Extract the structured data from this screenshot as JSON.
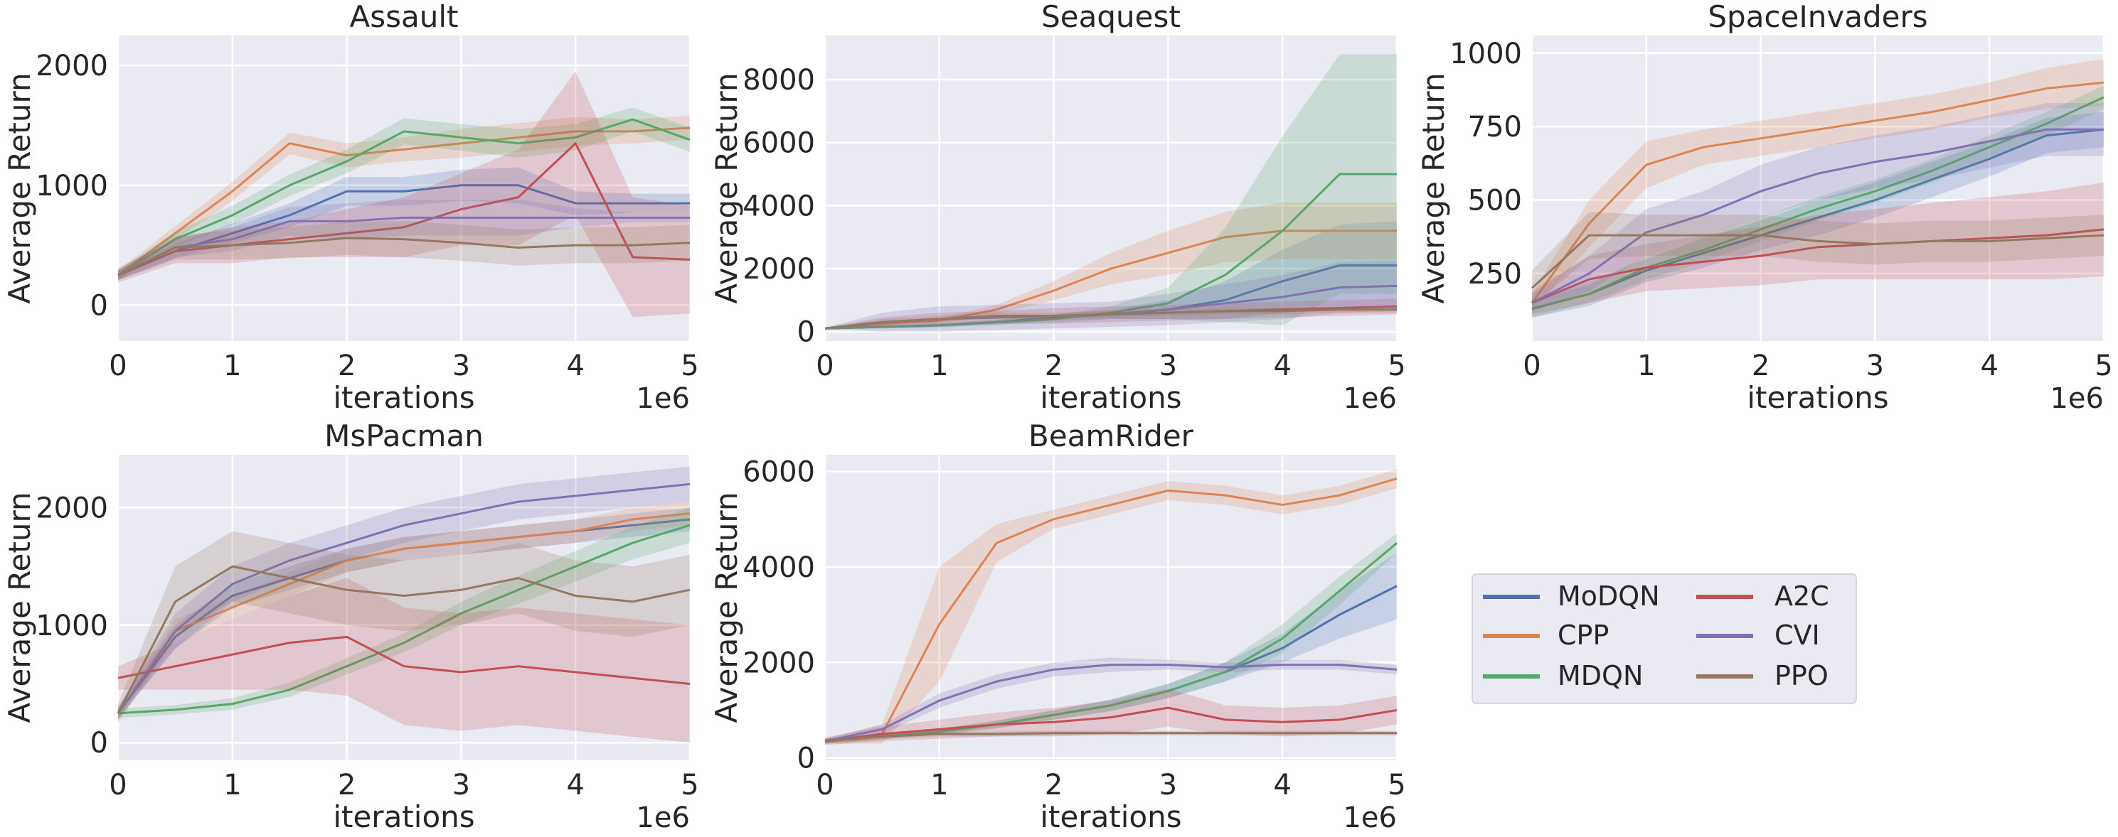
{
  "figure": {
    "legend": {
      "entries": [
        {
          "label": "MoDQN",
          "color": "#4c72b0"
        },
        {
          "label": "CPP",
          "color": "#dd8452"
        },
        {
          "label": "MDQN",
          "color": "#55a868"
        },
        {
          "label": "A2C",
          "color": "#c44e52"
        },
        {
          "label": "CVI",
          "color": "#8172b3"
        },
        {
          "label": "PPO",
          "color": "#937860"
        }
      ]
    }
  },
  "chart_data": [
    {
      "type": "line",
      "title": "Assault",
      "xlabel": "iterations",
      "ylabel": "Average Return",
      "x_multiplier": "1e6",
      "xlim": [
        0,
        5
      ],
      "ylim": [
        -300,
        2250
      ],
      "xticks": [
        0,
        1,
        2,
        3,
        4,
        5
      ],
      "yticks": [
        0,
        1000,
        2000
      ],
      "x": [
        0,
        0.5,
        1,
        1.5,
        2,
        2.5,
        3,
        3.5,
        4,
        4.5,
        5
      ],
      "series": [
        {
          "name": "MoDQN",
          "values": [
            250,
            450,
            600,
            750,
            950,
            950,
            1000,
            1000,
            850,
            850,
            850
          ],
          "spread": [
            40,
            60,
            80,
            100,
            120,
            120,
            130,
            150,
            100,
            80,
            80
          ]
        },
        {
          "name": "CPP",
          "values": [
            250,
            600,
            950,
            1350,
            1250,
            1300,
            1350,
            1400,
            1450,
            1450,
            1480
          ],
          "spread": [
            40,
            60,
            80,
            90,
            100,
            100,
            120,
            120,
            120,
            100,
            100
          ]
        },
        {
          "name": "MDQN",
          "values": [
            250,
            550,
            750,
            1000,
            1200,
            1450,
            1400,
            1350,
            1400,
            1550,
            1380
          ],
          "spread": [
            40,
            60,
            80,
            90,
            100,
            110,
            110,
            120,
            110,
            100,
            100
          ]
        },
        {
          "name": "A2C",
          "values": [
            250,
            450,
            500,
            550,
            600,
            650,
            800,
            900,
            1350,
            400,
            380
          ],
          "spread": [
            60,
            100,
            150,
            150,
            200,
            250,
            300,
            400,
            600,
            500,
            450
          ]
        },
        {
          "name": "CVI",
          "values": [
            250,
            480,
            550,
            700,
            700,
            730,
            730,
            730,
            730,
            730,
            730
          ],
          "spread": [
            40,
            80,
            100,
            120,
            150,
            150,
            150,
            150,
            80,
            40,
            40
          ]
        },
        {
          "name": "PPO",
          "values": [
            250,
            480,
            500,
            520,
            560,
            550,
            520,
            480,
            500,
            500,
            520
          ],
          "spread": [
            40,
            100,
            120,
            130,
            140,
            150,
            150,
            150,
            150,
            150,
            150
          ]
        }
      ]
    },
    {
      "type": "line",
      "title": "Seaquest",
      "xlabel": "iterations",
      "ylabel": "Average Return",
      "x_multiplier": "1e6",
      "xlim": [
        0,
        5
      ],
      "ylim": [
        -300,
        9400
      ],
      "xticks": [
        0,
        1,
        2,
        3,
        4,
        5
      ],
      "yticks": [
        0,
        2000,
        4000,
        6000,
        8000
      ],
      "x": [
        0,
        0.5,
        1,
        1.5,
        2,
        2.5,
        3,
        3.5,
        4,
        4.5,
        5
      ],
      "series": [
        {
          "name": "MoDQN",
          "values": [
            100,
            150,
            200,
            300,
            450,
            550,
            700,
            1000,
            1600,
            2100,
            2100
          ],
          "spread": [
            30,
            50,
            60,
            80,
            100,
            150,
            300,
            600,
            1000,
            1300,
            1400
          ]
        },
        {
          "name": "CPP",
          "values": [
            100,
            250,
            350,
            700,
            1300,
            2000,
            2500,
            3000,
            3200,
            3200,
            3200
          ],
          "spread": [
            30,
            80,
            100,
            150,
            300,
            500,
            700,
            800,
            900,
            900,
            900
          ]
        },
        {
          "name": "MDQN",
          "values": [
            100,
            150,
            200,
            300,
            400,
            600,
            900,
            1800,
            3200,
            5000,
            5000
          ],
          "spread": [
            30,
            50,
            60,
            80,
            120,
            200,
            500,
            1500,
            3000,
            3800,
            3800
          ]
        },
        {
          "name": "A2C",
          "values": [
            100,
            300,
            400,
            450,
            500,
            550,
            600,
            650,
            700,
            750,
            800
          ],
          "spread": [
            30,
            150,
            200,
            200,
            250,
            250,
            250,
            250,
            250,
            250,
            250
          ]
        },
        {
          "name": "CVI",
          "values": [
            100,
            300,
            400,
            450,
            500,
            550,
            700,
            900,
            1100,
            1400,
            1450
          ],
          "spread": [
            30,
            300,
            400,
            400,
            400,
            400,
            500,
            600,
            700,
            800,
            800
          ]
        },
        {
          "name": "PPO",
          "values": [
            100,
            300,
            400,
            500,
            500,
            550,
            600,
            650,
            650,
            700,
            700
          ],
          "spread": [
            30,
            100,
            100,
            100,
            100,
            100,
            100,
            100,
            100,
            100,
            100
          ]
        }
      ]
    },
    {
      "type": "line",
      "title": "SpaceInvaders",
      "xlabel": "iterations",
      "ylabel": "Average Return",
      "x_multiplier": "1e6",
      "xlim": [
        0,
        5
      ],
      "ylim": [
        20,
        1060
      ],
      "xticks": [
        0,
        1,
        2,
        3,
        4,
        5
      ],
      "yticks": [
        250,
        500,
        750,
        1000
      ],
      "x": [
        0,
        0.5,
        1,
        1.5,
        2,
        2.5,
        3,
        3.5,
        4,
        4.5,
        5
      ],
      "series": [
        {
          "name": "MoDQN",
          "values": [
            130,
            180,
            260,
            320,
            380,
            440,
            500,
            570,
            640,
            720,
            740
          ],
          "spread": [
            30,
            40,
            40,
            50,
            50,
            60,
            60,
            60,
            60,
            60,
            60
          ]
        },
        {
          "name": "CPP",
          "values": [
            150,
            420,
            620,
            680,
            710,
            740,
            770,
            800,
            840,
            880,
            900
          ],
          "spread": [
            30,
            80,
            80,
            60,
            60,
            60,
            60,
            60,
            60,
            70,
            80
          ]
        },
        {
          "name": "MDQN",
          "values": [
            130,
            180,
            270,
            330,
            400,
            470,
            530,
            600,
            680,
            760,
            850
          ],
          "spread": [
            30,
            30,
            40,
            40,
            40,
            40,
            40,
            40,
            40,
            40,
            40
          ]
        },
        {
          "name": "A2C",
          "values": [
            150,
            230,
            270,
            290,
            310,
            340,
            350,
            360,
            370,
            380,
            400
          ],
          "spread": [
            40,
            80,
            80,
            90,
            100,
            110,
            120,
            130,
            140,
            150,
            160
          ]
        },
        {
          "name": "CVI",
          "values": [
            150,
            250,
            390,
            450,
            530,
            590,
            630,
            660,
            700,
            740,
            740
          ],
          "spread": [
            30,
            60,
            80,
            80,
            90,
            90,
            90,
            90,
            90,
            90,
            90
          ]
        },
        {
          "name": "PPO",
          "values": [
            200,
            380,
            380,
            380,
            380,
            360,
            350,
            360,
            360,
            370,
            380
          ],
          "spread": [
            60,
            80,
            70,
            70,
            70,
            70,
            70,
            70,
            70,
            70,
            70
          ]
        }
      ]
    },
    {
      "type": "line",
      "title": "MsPacman",
      "xlabel": "iterations",
      "ylabel": "Average Return",
      "x_multiplier": "1e6",
      "xlim": [
        0,
        5
      ],
      "ylim": [
        -150,
        2450
      ],
      "xticks": [
        0,
        1,
        2,
        3,
        4,
        5
      ],
      "yticks": [
        0,
        1000,
        2000
      ],
      "x": [
        0,
        0.5,
        1,
        1.5,
        2,
        2.5,
        3,
        3.5,
        4,
        4.5,
        5
      ],
      "series": [
        {
          "name": "MoDQN",
          "values": [
            250,
            900,
            1250,
            1400,
            1550,
            1650,
            1700,
            1750,
            1800,
            1850,
            1900
          ],
          "spread": [
            50,
            100,
            100,
            100,
            100,
            100,
            100,
            100,
            100,
            100,
            100
          ]
        },
        {
          "name": "CPP",
          "values": [
            250,
            950,
            1150,
            1350,
            1550,
            1650,
            1700,
            1750,
            1800,
            1900,
            1950
          ],
          "spread": [
            50,
            100,
            100,
            100,
            100,
            100,
            100,
            100,
            100,
            100,
            100
          ]
        },
        {
          "name": "MDQN",
          "values": [
            250,
            280,
            330,
            450,
            650,
            850,
            1100,
            1300,
            1500,
            1700,
            1850
          ],
          "spread": [
            40,
            40,
            50,
            60,
            70,
            80,
            100,
            120,
            130,
            140,
            150
          ]
        },
        {
          "name": "A2C",
          "values": [
            550,
            650,
            750,
            850,
            900,
            650,
            600,
            650,
            600,
            550,
            500
          ],
          "spread": [
            100,
            200,
            300,
            400,
            500,
            500,
            500,
            500,
            500,
            500,
            500
          ]
        },
        {
          "name": "CVI",
          "values": [
            250,
            950,
            1350,
            1550,
            1700,
            1850,
            1950,
            2050,
            2100,
            2150,
            2200
          ],
          "spread": [
            50,
            150,
            150,
            150,
            150,
            150,
            150,
            150,
            150,
            150,
            150
          ]
        },
        {
          "name": "PPO",
          "values": [
            250,
            1200,
            1500,
            1400,
            1300,
            1250,
            1300,
            1400,
            1250,
            1200,
            1300
          ],
          "spread": [
            80,
            300,
            300,
            300,
            300,
            300,
            300,
            300,
            300,
            300,
            300
          ]
        }
      ]
    },
    {
      "type": "line",
      "title": "BeamRider",
      "xlabel": "iterations",
      "ylabel": "Average Return",
      "x_multiplier": "1e6",
      "xlim": [
        0,
        5
      ],
      "ylim": [
        -50,
        6350
      ],
      "xticks": [
        0,
        1,
        2,
        3,
        4,
        5
      ],
      "yticks": [
        0,
        2000,
        4000,
        6000
      ],
      "x": [
        0,
        0.5,
        1,
        1.5,
        2,
        2.5,
        3,
        3.5,
        4,
        4.5,
        5
      ],
      "series": [
        {
          "name": "MoDQN",
          "values": [
            350,
            450,
            550,
            700,
            900,
            1100,
            1400,
            1800,
            2300,
            3000,
            3600
          ],
          "spread": [
            50,
            60,
            60,
            80,
            100,
            120,
            150,
            200,
            300,
            500,
            700
          ]
        },
        {
          "name": "CPP",
          "values": [
            350,
            500,
            2800,
            4500,
            5000,
            5300,
            5600,
            5500,
            5300,
            5500,
            5850
          ],
          "spread": [
            50,
            200,
            1200,
            400,
            200,
            200,
            200,
            200,
            200,
            200,
            200
          ]
        },
        {
          "name": "MDQN",
          "values": [
            350,
            450,
            550,
            700,
            900,
            1100,
            1400,
            1800,
            2500,
            3500,
            4500
          ],
          "spread": [
            50,
            60,
            60,
            80,
            100,
            120,
            150,
            200,
            300,
            300,
            200
          ]
        },
        {
          "name": "A2C",
          "values": [
            350,
            500,
            600,
            700,
            750,
            850,
            1050,
            800,
            750,
            800,
            1000
          ],
          "spread": [
            80,
            150,
            200,
            250,
            300,
            350,
            400,
            300,
            300,
            300,
            300
          ]
        },
        {
          "name": "CVI",
          "values": [
            350,
            600,
            1200,
            1600,
            1850,
            1950,
            1950,
            1900,
            1950,
            1950,
            1850
          ],
          "spread": [
            50,
            100,
            150,
            150,
            150,
            150,
            100,
            100,
            100,
            100,
            100
          ]
        },
        {
          "name": "PPO",
          "values": [
            350,
            450,
            500,
            500,
            520,
            520,
            520,
            520,
            520,
            520,
            520
          ],
          "spread": [
            50,
            50,
            50,
            50,
            50,
            50,
            50,
            50,
            50,
            50,
            50
          ]
        }
      ]
    }
  ]
}
